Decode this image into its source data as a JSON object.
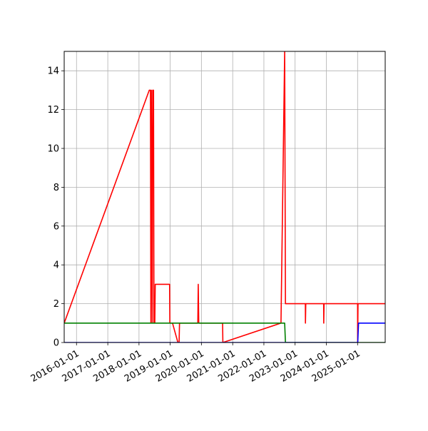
{
  "chart_data": {
    "type": "line",
    "title": "",
    "xlabel": "",
    "ylabel": "",
    "x_axis": {
      "kind": "date",
      "range": [
        "2015-08-10",
        "2025-11-20"
      ]
    },
    "ylim": [
      0,
      15
    ],
    "x_ticks": [
      "2016-01-01",
      "2017-01-01",
      "2018-01-01",
      "2019-01-01",
      "2020-01-01",
      "2021-01-01",
      "2022-01-01",
      "2023-01-01",
      "2024-01-01",
      "2025-01-01"
    ],
    "y_ticks": [
      0,
      2,
      4,
      6,
      8,
      10,
      12,
      14
    ],
    "y_tick_labels": [
      "0",
      "2",
      "4",
      "6",
      "8",
      "10",
      "12",
      "14"
    ],
    "grid": true,
    "series": [
      {
        "color": "#ff0000",
        "x": [
          "2015-08-10",
          "2018-05-01",
          "2018-05-15",
          "2018-05-20",
          "2018-05-25",
          "2018-06-05",
          "2018-06-10",
          "2018-06-20",
          "2018-06-25",
          "2018-07-05",
          "2018-07-10",
          "2018-12-25",
          "2018-12-28",
          "2019-01-25",
          "2019-01-28",
          "2019-04-01",
          "2019-04-15",
          "2019-04-20",
          "2019-05-10",
          "2019-11-20",
          "2019-11-25",
          "2019-12-01",
          "2020-09-05",
          "2020-09-08",
          "2022-07-20",
          "2022-09-01",
          "2022-09-10",
          "2023-05-01",
          "2023-05-02",
          "2023-05-06",
          "2023-12-01",
          "2023-12-02",
          "2023-12-06",
          "2025-01-01",
          "2025-01-02",
          "2025-01-06",
          "2025-11-20"
        ],
        "y": [
          1,
          13,
          13,
          1,
          13,
          1,
          13,
          13,
          1,
          1,
          3,
          3,
          1,
          1,
          1,
          0,
          0,
          1,
          1,
          1,
          3,
          1,
          1,
          0,
          1,
          15,
          2,
          2,
          1,
          2,
          2,
          1,
          2,
          2,
          0,
          2,
          2
        ]
      },
      {
        "color": "#008000",
        "x": [
          "2015-08-10",
          "2022-09-01",
          "2022-09-10",
          "2025-11-20"
        ],
        "y": [
          1,
          1,
          0,
          0
        ]
      },
      {
        "color": "#0000ff",
        "x": [
          "2015-08-10",
          "2025-01-03",
          "2025-01-12",
          "2025-11-20"
        ],
        "y": [
          0,
          0,
          1,
          1
        ]
      }
    ]
  }
}
